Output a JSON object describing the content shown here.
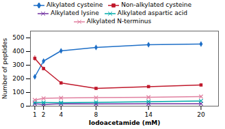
{
  "chart_data": {
    "type": "line",
    "xlabel": "Iodoacetamide (mM)",
    "ylabel": "Number of peptides",
    "x": [
      1,
      2,
      4,
      8,
      14,
      20
    ],
    "series": [
      {
        "name": "Alkylated cysteine",
        "color": "#1e6fc7",
        "marker": "diamond",
        "values": [
          215,
          330,
          405,
          430,
          450,
          455
        ],
        "yerr": [
          10,
          12,
          10,
          10,
          8,
          8
        ]
      },
      {
        "name": "Non-alkylated cysteine",
        "color": "#c0192c",
        "marker": "square",
        "values": [
          350,
          275,
          170,
          130,
          143,
          155
        ],
        "yerr": [
          20,
          12,
          10,
          8,
          8,
          10
        ]
      },
      {
        "name": "Alkylated lysine",
        "color": "#7030a0",
        "marker": "x",
        "values": [
          17,
          13,
          17,
          16,
          17,
          18
        ],
        "yerr": [
          2,
          2,
          2,
          2,
          2,
          2
        ]
      },
      {
        "name": "Alkylated aspartic acid",
        "color": "#00aaaa",
        "marker": "x",
        "values": [
          27,
          26,
          25,
          28,
          33,
          38
        ],
        "yerr": [
          3,
          2,
          2,
          3,
          3,
          3
        ]
      },
      {
        "name": "Alkylated N-terminus",
        "color": "#e080a0",
        "marker": "x",
        "values": [
          45,
          57,
          60,
          62,
          65,
          70
        ],
        "yerr": [
          4,
          4,
          4,
          4,
          4,
          4
        ]
      }
    ],
    "xlim": [
      0.5,
      22
    ],
    "xticks": [
      1,
      2,
      4,
      8,
      14,
      20
    ],
    "ylim": [
      0,
      550
    ],
    "yticks": [
      0,
      100,
      200,
      300,
      400,
      500
    ],
    "legend": "top"
  }
}
